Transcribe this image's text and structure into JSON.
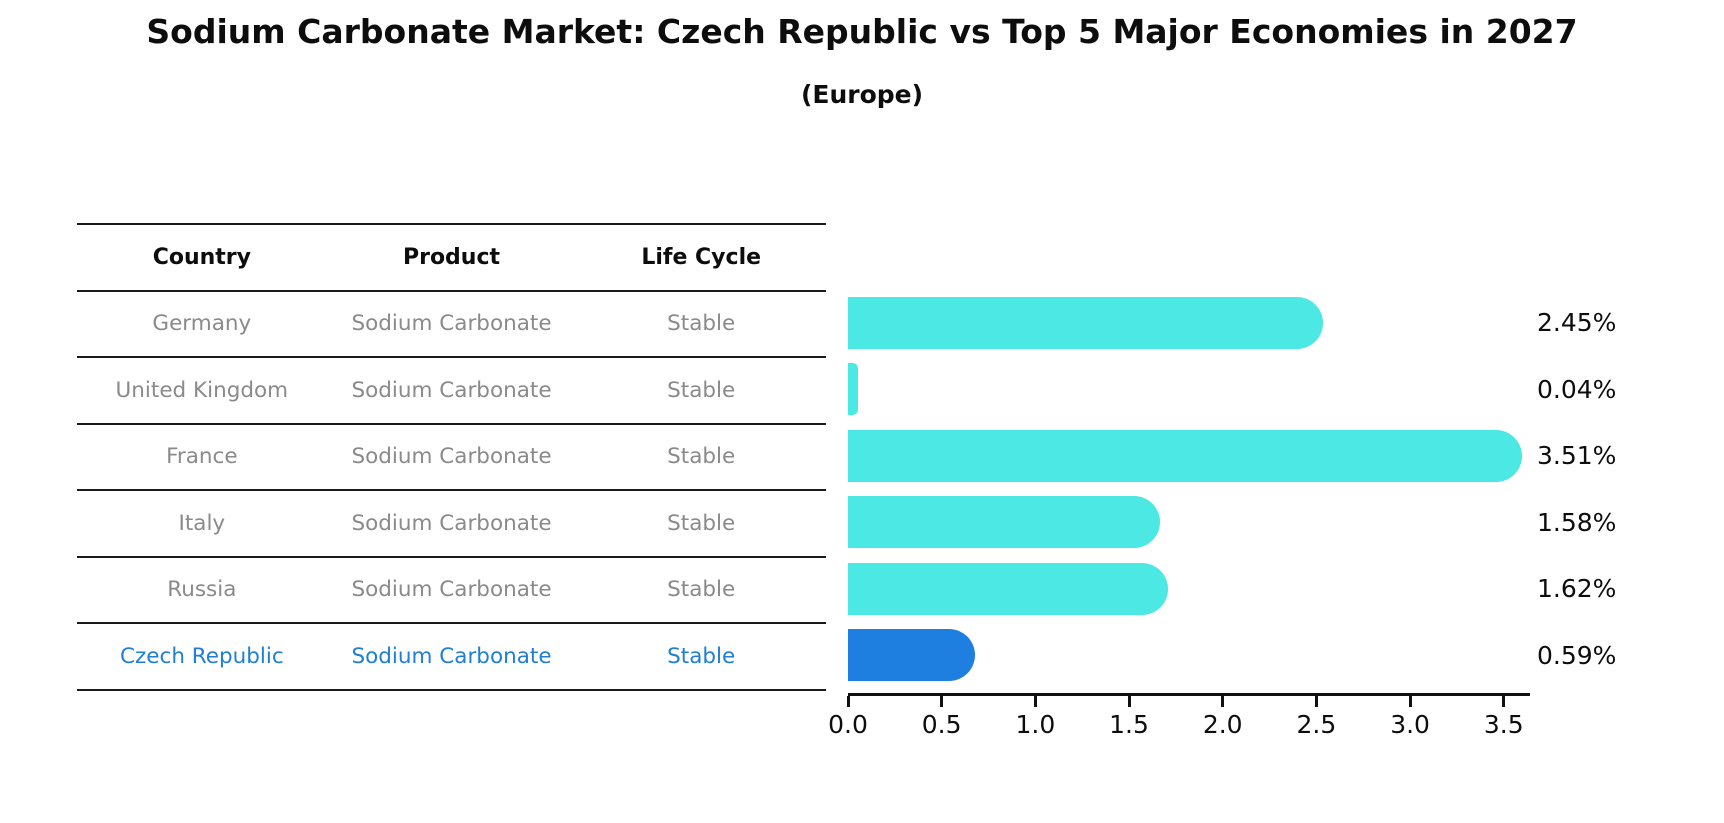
{
  "title": "Sodium Carbonate Market: Czech Republic vs Top 5 Major Economies in 2027",
  "subtitle": "(Europe)",
  "table": {
    "headers": [
      "Country",
      "Product",
      "Life Cycle"
    ],
    "rows": [
      {
        "country": "Germany",
        "product": "Sodium Carbonate",
        "life_cycle": "Stable",
        "highlight": false
      },
      {
        "country": "United Kingdom",
        "product": "Sodium Carbonate",
        "life_cycle": "Stable",
        "highlight": false
      },
      {
        "country": "France",
        "product": "Sodium Carbonate",
        "life_cycle": "Stable",
        "highlight": false
      },
      {
        "country": "Italy",
        "product": "Sodium Carbonate",
        "life_cycle": "Stable",
        "highlight": false
      },
      {
        "country": "Russia",
        "product": "Sodium Carbonate",
        "life_cycle": "Stable",
        "highlight": true
      }
    ],
    "highlight_row": {
      "country": "Czech Republic",
      "product": "Sodium Carbonate",
      "life_cycle": "Stable"
    }
  },
  "chart_data": {
    "type": "bar",
    "orientation": "horizontal",
    "categories": [
      "Germany",
      "United Kingdom",
      "France",
      "Italy",
      "Russia",
      "Czech Republic"
    ],
    "values": [
      2.45,
      0.04,
      3.51,
      1.58,
      1.62,
      0.59
    ],
    "labels": [
      "2.45%",
      "0.04%",
      "3.51%",
      "1.58%",
      "1.62%",
      "0.59%"
    ],
    "xticks": [
      "0.0",
      "0.5",
      "1.0",
      "1.5",
      "2.0",
      "2.5",
      "3.0",
      "3.5"
    ],
    "xlim": [
      0,
      3.64
    ],
    "grid": false,
    "legend": "none",
    "bar_color": "#4be8e4",
    "highlight_color": "#1e7fe0",
    "highlight_index": 5,
    "highlight_text_color": "#1f7fd6"
  }
}
